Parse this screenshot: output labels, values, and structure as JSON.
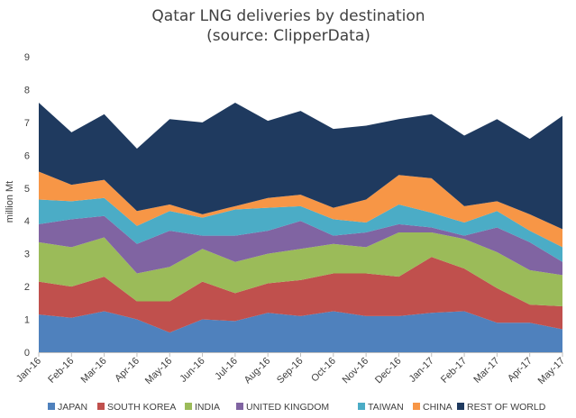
{
  "chart_data": {
    "type": "area",
    "stacked": true,
    "title": "Qatar LNG deliveries by destination",
    "subtitle": "(source: ClipperData)",
    "xlabel": "",
    "ylabel": "million Mt",
    "ylim": [
      0,
      9
    ],
    "yticks": [
      "0",
      "1",
      "2",
      "3",
      "4",
      "5",
      "6",
      "7",
      "8",
      "9"
    ],
    "grid": false,
    "legend_position": "bottom",
    "categories": [
      "Jan-16",
      "Feb-16",
      "Mar-16",
      "Apr-16",
      "May-16",
      "Jun-16",
      "Jul-16",
      "Aug-16",
      "Sep-16",
      "Oct-16",
      "Nov-16",
      "Dec-16",
      "Jan-17",
      "Feb-17",
      "Mar-17",
      "Apr-17",
      "May-17"
    ],
    "series": [
      {
        "name": "JAPAN",
        "color": "#4f81bd",
        "values": [
          1.15,
          1.05,
          1.25,
          1.0,
          0.6,
          1.0,
          0.95,
          1.2,
          1.1,
          1.25,
          1.1,
          1.1,
          1.2,
          1.25,
          0.9,
          0.9,
          0.7
        ]
      },
      {
        "name": "SOUTH KOREA",
        "color": "#c0504d",
        "values": [
          1.0,
          0.95,
          1.05,
          0.55,
          0.95,
          1.15,
          0.85,
          0.9,
          1.1,
          1.15,
          1.3,
          1.2,
          1.7,
          1.3,
          1.05,
          0.55,
          0.7
        ]
      },
      {
        "name": "INDIA",
        "color": "#9bbb59",
        "values": [
          1.2,
          1.2,
          1.2,
          0.85,
          1.05,
          1.0,
          0.95,
          0.9,
          0.95,
          0.9,
          0.8,
          1.35,
          0.75,
          0.9,
          1.1,
          1.05,
          0.95
        ]
      },
      {
        "name": "UNITED KINGDOM",
        "color": "#8064a2",
        "values": [
          0.55,
          0.85,
          0.65,
          0.9,
          1.1,
          0.4,
          0.8,
          0.7,
          0.85,
          0.25,
          0.45,
          0.25,
          0.15,
          0.1,
          0.75,
          0.85,
          0.4
        ]
      },
      {
        "name": "TAIWAN",
        "color": "#4bacc6",
        "values": [
          0.75,
          0.55,
          0.55,
          0.55,
          0.6,
          0.55,
          0.8,
          0.7,
          0.45,
          0.5,
          0.3,
          0.6,
          0.45,
          0.4,
          0.5,
          0.35,
          0.45
        ]
      },
      {
        "name": "CHINA",
        "color": "#f79646",
        "values": [
          0.85,
          0.5,
          0.55,
          0.45,
          0.2,
          0.1,
          0.1,
          0.3,
          0.35,
          0.35,
          0.7,
          0.9,
          1.05,
          0.5,
          0.3,
          0.5,
          0.55
        ]
      },
      {
        "name": "REST OF WORLD",
        "color": "#1f3a5f",
        "values": [
          2.1,
          1.6,
          2.0,
          1.9,
          2.6,
          2.8,
          3.15,
          2.35,
          2.55,
          2.4,
          2.25,
          1.7,
          1.95,
          2.15,
          2.5,
          2.3,
          3.45
        ]
      }
    ]
  }
}
